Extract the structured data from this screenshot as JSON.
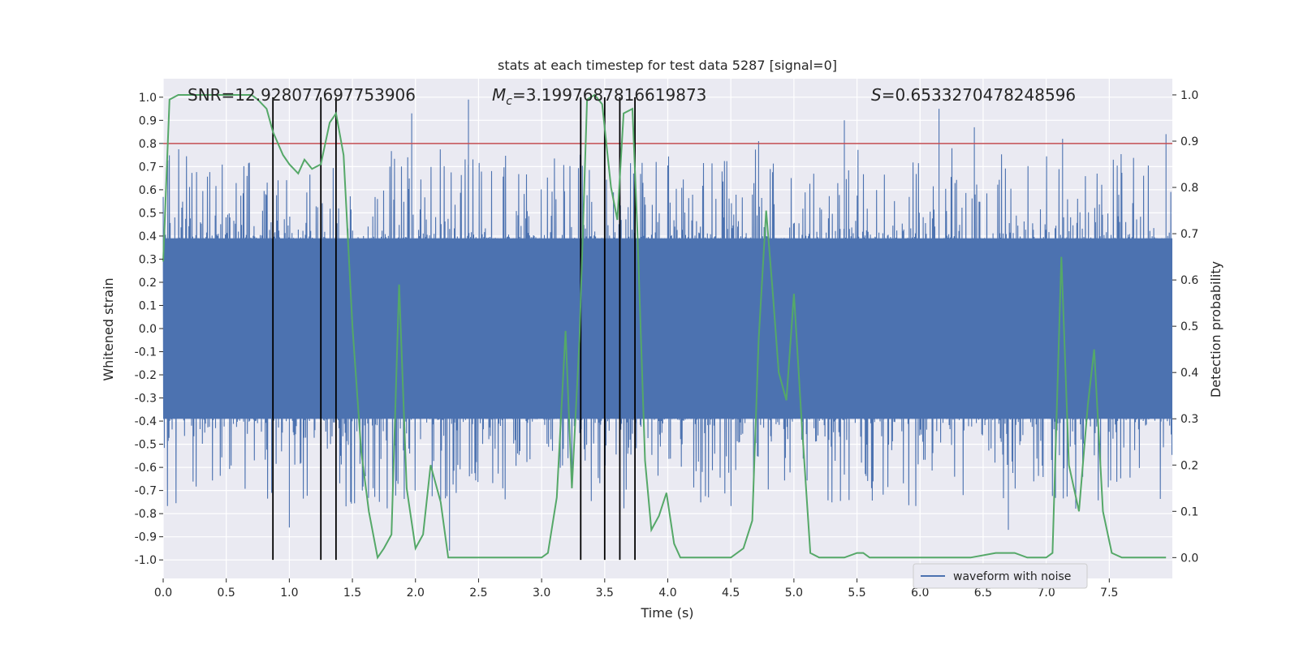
{
  "chart_data": {
    "type": "line",
    "title": "stats at each timestep for test data 5287 [signal=0]",
    "xlabel": "Time (s)",
    "ylabel_left": "Whitened strain",
    "ylabel_right": "Detection probability",
    "xlim": [
      0.0,
      8.0
    ],
    "ylim_left": [
      -1.08,
      1.08
    ],
    "ylim_right": [
      -0.045,
      1.035
    ],
    "x_ticks": [
      "0.0",
      "0.5",
      "1.0",
      "1.5",
      "2.0",
      "2.5",
      "3.0",
      "3.5",
      "4.0",
      "4.5",
      "5.0",
      "5.5",
      "6.0",
      "6.5",
      "7.0",
      "7.5"
    ],
    "y_ticks_left": [
      "1.0",
      "0.9",
      "0.8",
      "0.7",
      "0.6",
      "0.5",
      "0.4",
      "0.3",
      "0.2",
      "0.1",
      "0.0",
      "-0.1",
      "-0.2",
      "-0.3",
      "-0.4",
      "-0.5",
      "-0.6",
      "-0.7",
      "-0.8",
      "-0.9",
      "-1.0"
    ],
    "y_ticks_right": [
      "1.0",
      "0.9",
      "0.8",
      "0.7",
      "0.6",
      "0.5",
      "0.4",
      "0.3",
      "0.2",
      "0.1",
      "0.0"
    ],
    "grid": true,
    "legend_position": "bottom-right",
    "annotations": {
      "snr": "SNR=12.928077697753906",
      "mc_symbol": "M",
      "mc_sub": "c",
      "mc_value": "=3.1997687816619873",
      "s_symbol": "S",
      "s_value": "=0.6533270478248596"
    },
    "threshold_line": {
      "y": 0.8,
      "color": "#c44e52"
    },
    "vertical_lines_x": [
      0.87,
      1.25,
      1.37,
      3.31,
      3.5,
      3.62,
      3.74
    ],
    "series": [
      {
        "name": "waveform with noise",
        "axis": "left",
        "color": "#4c72b0",
        "style": "dense-noise",
        "core_amplitude": 0.39,
        "typical_peak": 0.6,
        "max_peaks": [
          {
            "x": 0.86,
            "y": -0.71
          },
          {
            "x": 1.0,
            "y": -0.86
          },
          {
            "x": 1.97,
            "y": 0.93
          },
          {
            "x": 2.42,
            "y": 0.99
          },
          {
            "x": 2.27,
            "y": -0.96
          },
          {
            "x": 4.72,
            "y": 0.81
          },
          {
            "x": 5.4,
            "y": 0.9
          },
          {
            "x": 6.15,
            "y": 0.95
          },
          {
            "x": 6.43,
            "y": 0.87
          },
          {
            "x": 6.7,
            "y": -0.87
          },
          {
            "x": 7.13,
            "y": 0.82
          },
          {
            "x": 7.95,
            "y": 0.84
          }
        ]
      },
      {
        "name": "",
        "axis": "right",
        "color": "#55a868",
        "x": [
          0.0,
          0.05,
          0.12,
          0.2,
          0.3,
          0.4,
          0.5,
          0.6,
          0.65,
          0.7,
          0.75,
          0.82,
          0.87,
          0.95,
          1.0,
          1.07,
          1.12,
          1.18,
          1.25,
          1.32,
          1.37,
          1.43,
          1.5,
          1.57,
          1.63,
          1.7,
          1.75,
          1.81,
          1.87,
          1.93,
          2.0,
          2.06,
          2.12,
          2.2,
          2.26,
          2.3,
          2.4,
          2.5,
          2.6,
          2.7,
          2.8,
          2.9,
          3.0,
          3.05,
          3.12,
          3.19,
          3.24,
          3.3,
          3.36,
          3.42,
          3.48,
          3.55,
          3.6,
          3.65,
          3.72,
          3.76,
          3.82,
          3.87,
          3.93,
          3.99,
          4.05,
          4.1,
          4.2,
          4.3,
          4.4,
          4.5,
          4.6,
          4.67,
          4.72,
          4.78,
          4.83,
          4.88,
          4.94,
          5.0,
          5.06,
          5.13,
          5.2,
          5.3,
          5.4,
          5.5,
          5.55,
          5.6,
          5.7,
          5.8,
          5.9,
          6.0,
          6.2,
          6.4,
          6.6,
          6.75,
          6.85,
          7.0,
          7.05,
          7.12,
          7.18,
          7.26,
          7.33,
          7.38,
          7.45,
          7.52,
          7.6,
          7.8,
          7.95
        ],
        "y": [
          0.64,
          0.99,
          1.0,
          1.0,
          1.0,
          1.0,
          1.0,
          1.0,
          1.0,
          1.0,
          0.99,
          0.97,
          0.92,
          0.87,
          0.85,
          0.83,
          0.86,
          0.84,
          0.85,
          0.94,
          0.96,
          0.87,
          0.5,
          0.23,
          0.1,
          0.0,
          0.02,
          0.05,
          0.59,
          0.15,
          0.02,
          0.05,
          0.2,
          0.12,
          0.0,
          0.0,
          0.0,
          0.0,
          0.0,
          0.0,
          0.0,
          0.0,
          0.0,
          0.01,
          0.13,
          0.49,
          0.15,
          0.47,
          0.99,
          1.0,
          0.98,
          0.8,
          0.73,
          0.96,
          0.97,
          0.7,
          0.21,
          0.06,
          0.09,
          0.14,
          0.03,
          0.0,
          0.0,
          0.0,
          0.0,
          0.0,
          0.02,
          0.08,
          0.47,
          0.75,
          0.58,
          0.4,
          0.34,
          0.57,
          0.3,
          0.01,
          0.0,
          0.0,
          0.0,
          0.01,
          0.01,
          0.0,
          0.0,
          0.0,
          0.0,
          0.0,
          0.0,
          0.0,
          0.01,
          0.01,
          0.0,
          0.0,
          0.01,
          0.65,
          0.2,
          0.1,
          0.33,
          0.45,
          0.1,
          0.01,
          0.0,
          0.0,
          0.0
        ]
      }
    ],
    "legend": [
      {
        "label": "waveform with noise",
        "color": "#4c72b0"
      }
    ]
  }
}
